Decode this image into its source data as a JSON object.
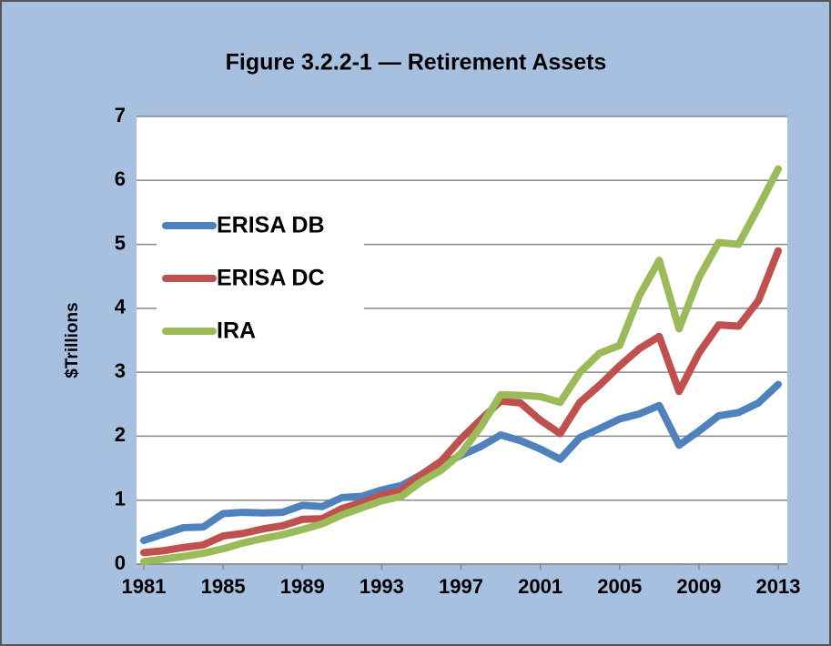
{
  "chart_data": {
    "type": "line",
    "title": "Figure 3.2.2-1 — Retirement Assets",
    "y_label": "$Trillions",
    "x": [
      1981,
      1982,
      1983,
      1984,
      1985,
      1986,
      1987,
      1988,
      1989,
      1990,
      1991,
      1992,
      1993,
      1994,
      1995,
      1996,
      1997,
      1998,
      1999,
      2000,
      2001,
      2002,
      2003,
      2004,
      2005,
      2006,
      2007,
      2008,
      2009,
      2010,
      2011,
      2012,
      2013
    ],
    "xlim": [
      1981,
      2013
    ],
    "xticks": [
      1981,
      1985,
      1989,
      1993,
      1997,
      2001,
      2005,
      2009,
      2013
    ],
    "ylim": [
      0,
      7
    ],
    "yticks": [
      0,
      1,
      2,
      3,
      4,
      5,
      6,
      7
    ],
    "grid": true,
    "legend": "left",
    "series": [
      {
        "name": "ERISA DB",
        "color": "#4f81bd",
        "values": [
          0.37,
          0.47,
          0.57,
          0.58,
          0.79,
          0.81,
          0.8,
          0.81,
          0.92,
          0.9,
          1.04,
          1.06,
          1.16,
          1.23,
          1.4,
          1.55,
          1.7,
          1.84,
          2.02,
          1.93,
          1.8,
          1.64,
          1.98,
          2.12,
          2.27,
          2.35,
          2.48,
          1.86,
          2.08,
          2.32,
          2.37,
          2.52,
          2.81
        ]
      },
      {
        "name": "ERISA DC",
        "color": "#c0504d",
        "values": [
          0.18,
          0.21,
          0.26,
          0.3,
          0.44,
          0.48,
          0.55,
          0.6,
          0.7,
          0.71,
          0.87,
          0.96,
          1.08,
          1.15,
          1.4,
          1.61,
          1.96,
          2.26,
          2.55,
          2.52,
          2.25,
          2.04,
          2.53,
          2.8,
          3.1,
          3.37,
          3.56,
          2.7,
          3.3,
          3.74,
          3.72,
          4.12,
          4.9
        ]
      },
      {
        "name": "IRA",
        "color": "#9bbb59",
        "values": [
          0.04,
          0.08,
          0.12,
          0.17,
          0.24,
          0.33,
          0.4,
          0.46,
          0.54,
          0.63,
          0.77,
          0.88,
          0.99,
          1.06,
          1.29,
          1.47,
          1.73,
          2.15,
          2.65,
          2.64,
          2.62,
          2.53,
          3.0,
          3.3,
          3.42,
          4.2,
          4.75,
          3.68,
          4.48,
          5.03,
          5.0,
          5.58,
          6.18
        ]
      }
    ]
  }
}
